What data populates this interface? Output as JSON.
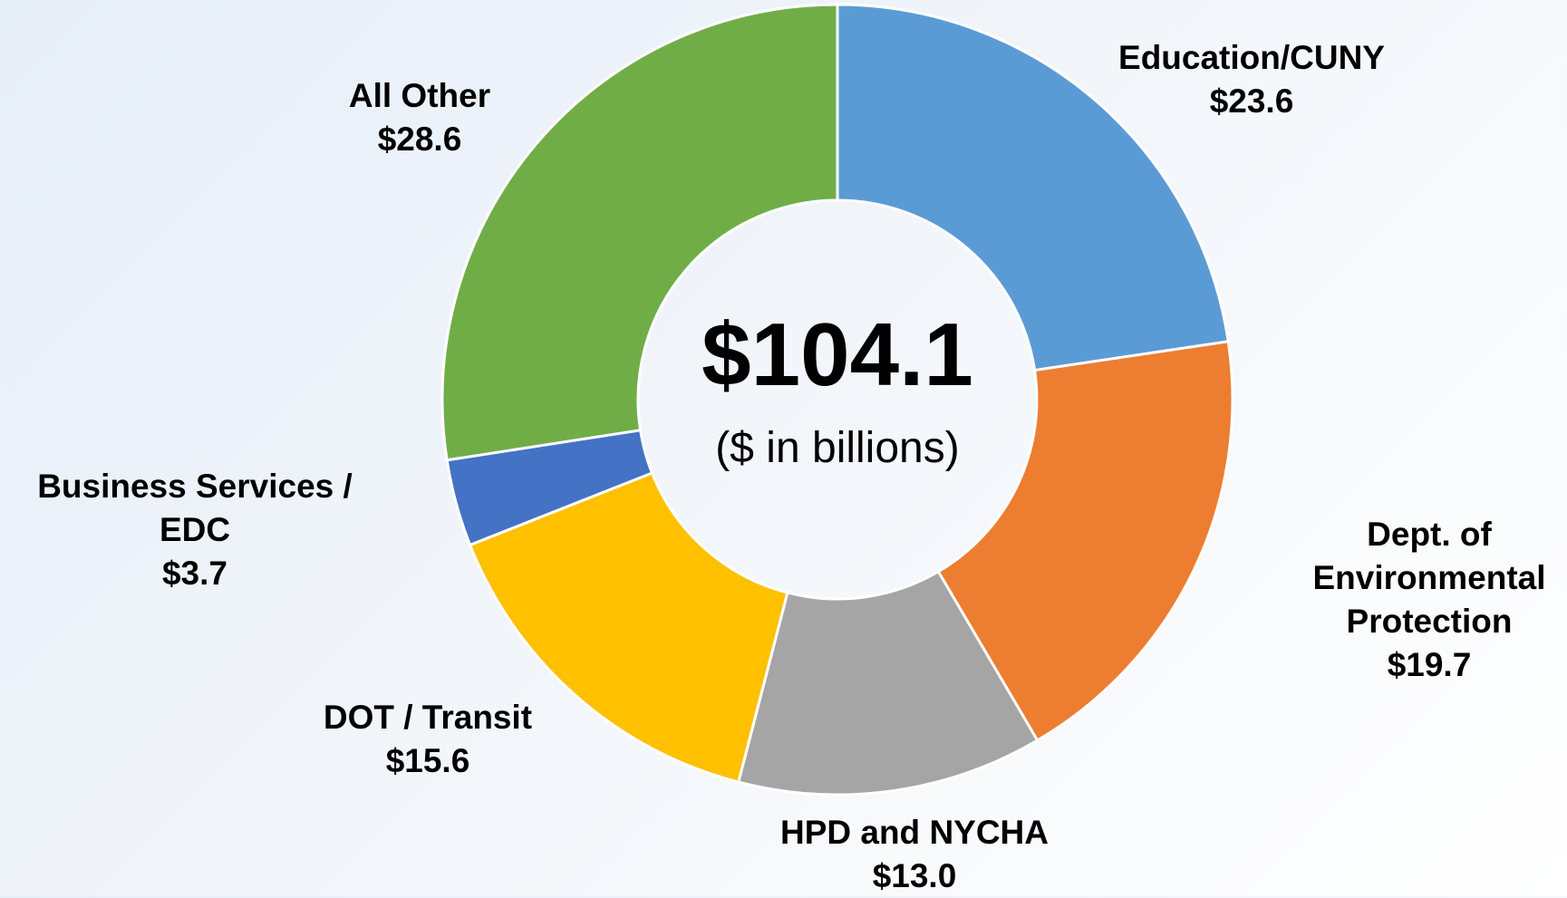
{
  "chart_data": {
    "type": "donut",
    "center_label": "$104.1",
    "center_sublabel": "($ in billions)",
    "categories": [
      "Education/CUNY",
      "Dept. of Environmental Protection",
      "HPD and NYCHA",
      "DOT / Transit",
      "Business Services / EDC",
      "All Other"
    ],
    "values": [
      23.6,
      19.7,
      13.0,
      15.6,
      3.7,
      28.6
    ],
    "value_labels": [
      "$23.6",
      "$19.7",
      "$13.0",
      "$15.6",
      "$3.7",
      "$28.6"
    ],
    "colors": [
      "#5b9bd5",
      "#ed7d31",
      "#a5a5a5",
      "#ffc000",
      "#4472c4",
      "#70ad47"
    ]
  }
}
